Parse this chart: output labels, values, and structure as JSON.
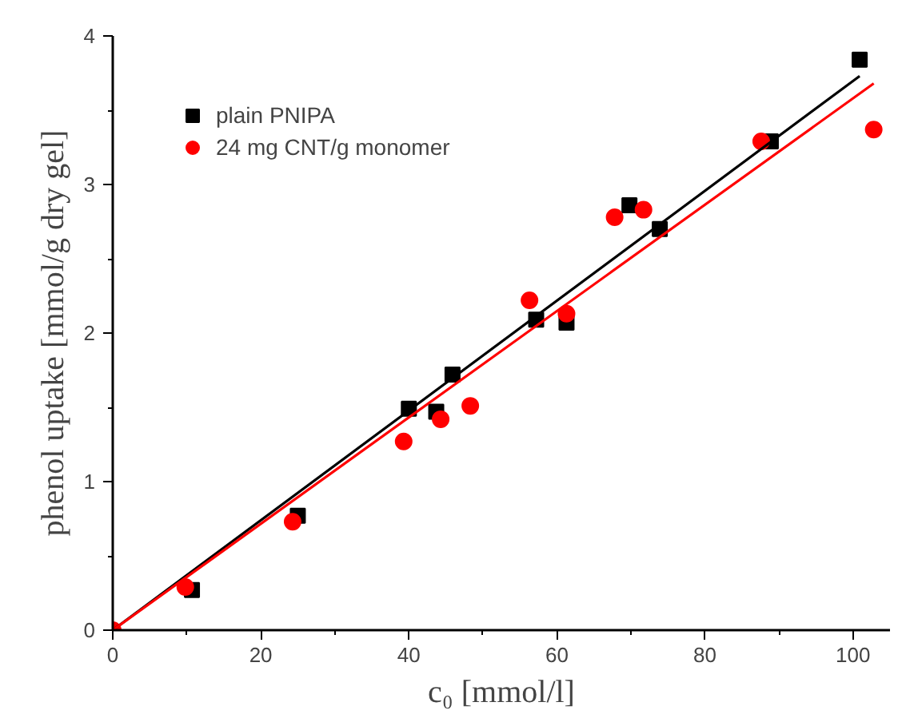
{
  "chart_data": {
    "type": "scatter",
    "xlabel": "c₀ [mmol/l]",
    "ylabel": "phenol uptake [mmol/g dry gel]",
    "xlim": [
      0,
      105
    ],
    "ylim": [
      0,
      4
    ],
    "xticks": [
      0,
      20,
      40,
      60,
      80,
      100
    ],
    "yticks": [
      0,
      1,
      2,
      3,
      4
    ],
    "grid": false,
    "legend": "top left",
    "series": [
      {
        "name": "plain PNIPA",
        "color": "#000000",
        "marker": "square",
        "x": [
          10.7,
          25,
          40,
          43.7,
          45.9,
          57.2,
          61.3,
          69.8,
          73.9,
          88.9,
          100.9
        ],
        "values": [
          0.27,
          0.77,
          1.49,
          1.47,
          1.72,
          2.09,
          2.07,
          2.86,
          2.7,
          3.29,
          3.84
        ]
      },
      {
        "name": "24 mg CNT/g monomer",
        "color": "#ff0000",
        "marker": "circle",
        "x": [
          0,
          9.8,
          24.3,
          39.3,
          44.3,
          48.3,
          56.3,
          61.3,
          67.8,
          71.7,
          87.6,
          102.8
        ],
        "values": [
          0,
          0.29,
          0.73,
          1.27,
          1.42,
          1.51,
          2.22,
          2.13,
          2.78,
          2.83,
          3.29,
          3.37
        ]
      },
      {
        "type": "line",
        "color": "#000000",
        "x": [
          0,
          100.9
        ],
        "values": [
          0,
          3.73
        ]
      },
      {
        "type": "line",
        "color": "#ff0000",
        "x": [
          0,
          102.8
        ],
        "values": [
          0,
          3.68
        ]
      }
    ]
  }
}
